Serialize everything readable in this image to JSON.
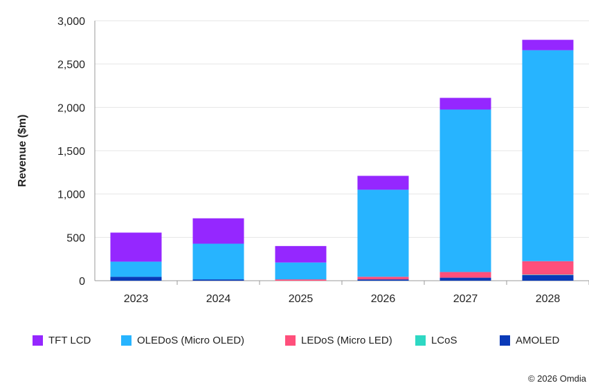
{
  "chart_data": {
    "type": "bar",
    "stacked": true,
    "ylabel": "Revenue ($m)",
    "xlabel": "",
    "ylim": [
      0,
      3000
    ],
    "yticks": [
      "0",
      "500",
      "1,000",
      "1,500",
      "2,000",
      "2,500",
      "3,000"
    ],
    "ytick_values": [
      0,
      500,
      1000,
      1500,
      2000,
      2500,
      3000
    ],
    "grid": true,
    "legend_position": "bottom",
    "categories": [
      "2023",
      "2024",
      "2025",
      "2026",
      "2027",
      "2028"
    ],
    "series": [
      {
        "name": "AMOLED",
        "color": "#0a3ab8",
        "values": [
          45,
          15,
          0,
          15,
          35,
          65
        ]
      },
      {
        "name": "LCoS",
        "color": "#2ed8c3",
        "values": [
          0,
          0,
          0,
          0,
          0,
          5
        ]
      },
      {
        "name": "LEDoS (Micro LED)",
        "color": "#ff4f7b",
        "values": [
          0,
          0,
          15,
          30,
          65,
          155
        ]
      },
      {
        "name": "OLEDoS (Micro OLED)",
        "color": "#27b4ff",
        "values": [
          175,
          412,
          195,
          1005,
          1875,
          2435
        ]
      },
      {
        "name": "TFT LCD",
        "color": "#9527ff",
        "values": [
          335,
          293,
          190,
          160,
          135,
          120
        ]
      }
    ],
    "legend_order": [
      "TFT LCD",
      "OLEDoS (Micro OLED)",
      "LEDoS (Micro LED)",
      "LCoS",
      "AMOLED"
    ]
  },
  "copyright": "© 2026 Omdia"
}
